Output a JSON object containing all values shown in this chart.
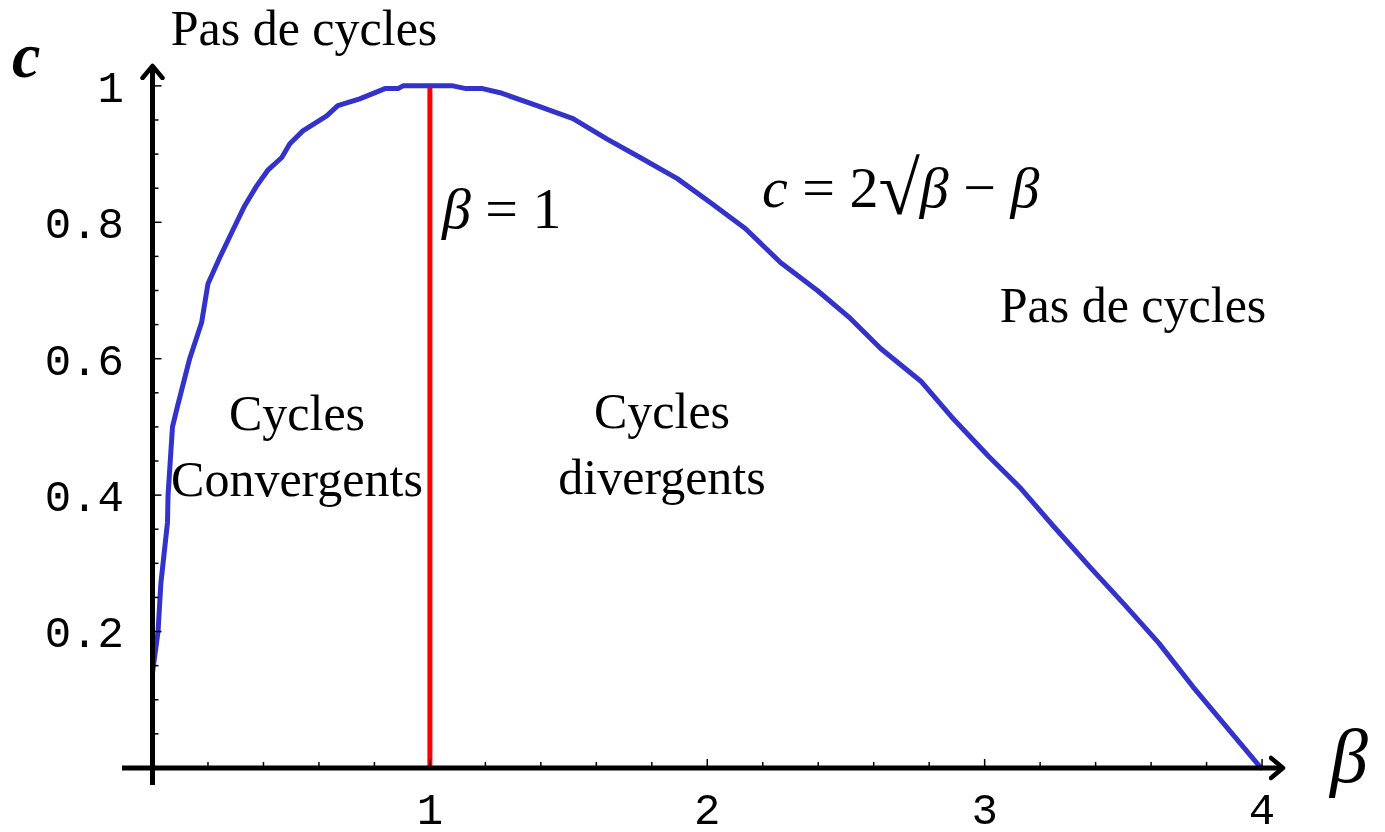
{
  "chart_data": {
    "type": "line",
    "xlabel": "β",
    "ylabel": "c",
    "xlim": [
      -0.11,
      4.09
    ],
    "ylim": [
      -0.025,
      1.035
    ],
    "xticks": [
      {
        "value": 0.2,
        "label": null
      },
      {
        "value": 0.4,
        "label": null
      },
      {
        "value": 0.6,
        "label": null
      },
      {
        "value": 0.8,
        "label": null
      },
      1,
      {
        "value": 1.2,
        "label": null
      },
      {
        "value": 1.4,
        "label": null
      },
      {
        "value": 1.6,
        "label": null
      },
      {
        "value": 1.8,
        "label": null
      },
      2,
      {
        "value": 2.2,
        "label": null
      },
      {
        "value": 2.4,
        "label": null
      },
      {
        "value": 2.6,
        "label": null
      },
      {
        "value": 2.8,
        "label": null
      },
      3,
      {
        "value": 3.2,
        "label": null
      },
      {
        "value": 3.4,
        "label": null
      },
      {
        "value": 3.6,
        "label": null
      },
      {
        "value": 3.8,
        "label": null
      },
      4
    ],
    "yticks": [
      {
        "value": 0.05,
        "label": null
      },
      {
        "value": 0.1,
        "label": null
      },
      {
        "value": 0.15,
        "label": null
      },
      0.2,
      {
        "value": 0.25,
        "label": null
      },
      {
        "value": 0.3,
        "label": null
      },
      {
        "value": 0.35,
        "label": null
      },
      0.4,
      {
        "value": 0.45,
        "label": null
      },
      {
        "value": 0.5,
        "label": null
      },
      {
        "value": 0.55,
        "label": null
      },
      0.6,
      {
        "value": 0.65,
        "label": null
      },
      {
        "value": 0.7,
        "label": null
      },
      {
        "value": 0.75,
        "label": null
      },
      0.8,
      {
        "value": 0.85,
        "label": null
      },
      {
        "value": 0.9,
        "label": null
      },
      {
        "value": 0.95,
        "label": null
      },
      1
    ],
    "series": [
      {
        "name": "c = 2√β − β",
        "color": "#3333cc",
        "x": [
          0,
          0,
          0.02,
          0.03,
          0.054,
          0.056,
          0.072,
          0.09,
          0.134,
          0.177,
          0.2,
          0.242,
          0.289,
          0.332,
          0.375,
          0.415,
          0.466,
          0.495,
          0.542,
          0.628,
          0.668,
          0.747,
          0.838,
          0.885,
          0.903,
          1.083,
          1.13,
          1.19,
          1.253,
          1.386,
          1.516,
          1.639,
          1.758,
          1.892,
          2.011,
          2.137,
          2.264,
          2.397,
          2.516,
          2.625,
          2.77,
          2.88,
          3.014,
          3.13,
          3.249,
          3.383,
          3.505,
          3.628,
          3.751,
          3.874,
          3.996
        ],
        "values": [
          0,
          0.14,
          0.2,
          0.27,
          0.36,
          0.4,
          0.5,
          0.53,
          0.6,
          0.653,
          0.71,
          0.748,
          0.788,
          0.824,
          0.853,
          0.876,
          0.895,
          0.915,
          0.934,
          0.956,
          0.971,
          0.981,
          0.996,
          0.996,
          1,
          1,
          0.996,
          0.996,
          0.99,
          0.971,
          0.952,
          0.922,
          0.895,
          0.864,
          0.829,
          0.791,
          0.741,
          0.7,
          0.659,
          0.615,
          0.567,
          0.515,
          0.457,
          0.41,
          0.354,
          0.293,
          0.239,
          0.183,
          0.119,
          0.059,
          0
        ]
      }
    ],
    "ref_lines": [
      {
        "axis": "x",
        "value": 1,
        "label": "β = 1",
        "color": "#ff0000"
      }
    ],
    "annotations": [
      "Pas de cycles",
      "Cycles\nConvergents",
      "Cycles\ndivergents",
      "Pas de cycles"
    ]
  }
}
